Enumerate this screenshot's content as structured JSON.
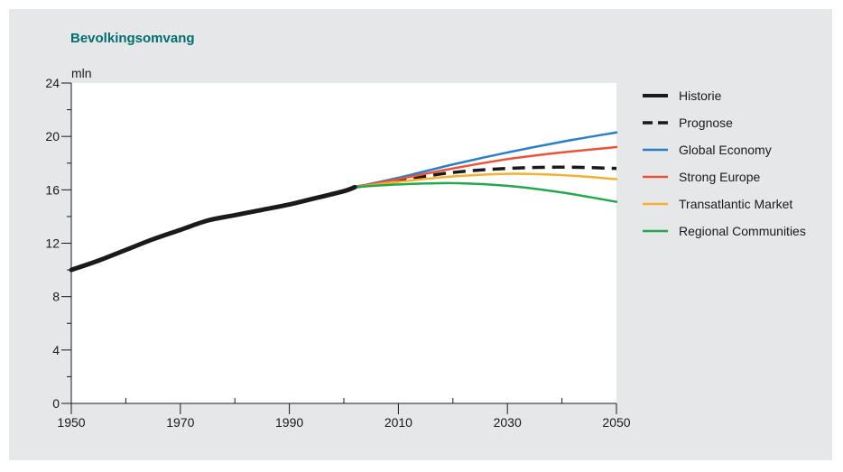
{
  "chart_data": {
    "type": "line",
    "title": "Bevolkingsomvang",
    "ylabel": "mln",
    "xlim": [
      1950,
      2050
    ],
    "ylim": [
      0,
      24
    ],
    "xticks": [
      1950,
      1970,
      1990,
      2010,
      2030,
      2050
    ],
    "xticks_minor": [
      1960,
      1980,
      2000,
      2020,
      2040
    ],
    "yticks": [
      0,
      4,
      8,
      12,
      16,
      20,
      24
    ],
    "yticks_minor": [
      2,
      6,
      10,
      14,
      18,
      22
    ],
    "grid": false,
    "legend_position": "right",
    "series": [
      {
        "name": "Historie",
        "color": "#1a1a1a",
        "style": "solid-thick",
        "x": [
          1950,
          1955,
          1960,
          1965,
          1970,
          1975,
          1980,
          1985,
          1990,
          1995,
          2000,
          2002
        ],
        "y": [
          10.0,
          10.7,
          11.5,
          12.3,
          13.0,
          13.7,
          14.1,
          14.5,
          14.9,
          15.4,
          15.9,
          16.2
        ]
      },
      {
        "name": "Prognose",
        "color": "#1a1a1a",
        "style": "dashed",
        "x": [
          2002,
          2010,
          2020,
          2030,
          2040,
          2050
        ],
        "y": [
          16.2,
          16.7,
          17.3,
          17.6,
          17.7,
          17.6
        ]
      },
      {
        "name": "Global Economy",
        "color": "#2a7fc4",
        "style": "solid",
        "x": [
          2002,
          2010,
          2020,
          2030,
          2040,
          2050
        ],
        "y": [
          16.2,
          16.9,
          17.9,
          18.8,
          19.6,
          20.3
        ]
      },
      {
        "name": "Strong Europe",
        "color": "#e8533a",
        "style": "solid",
        "x": [
          2002,
          2010,
          2020,
          2030,
          2040,
          2050
        ],
        "y": [
          16.2,
          16.8,
          17.6,
          18.3,
          18.8,
          19.2
        ]
      },
      {
        "name": "Transatlantic Market",
        "color": "#f4b030",
        "style": "solid",
        "x": [
          2002,
          2010,
          2020,
          2030,
          2040,
          2050
        ],
        "y": [
          16.2,
          16.6,
          17.0,
          17.2,
          17.1,
          16.8
        ]
      },
      {
        "name": "Regional Communities",
        "color": "#25a64f",
        "style": "solid",
        "x": [
          2002,
          2010,
          2020,
          2030,
          2040,
          2050
        ],
        "y": [
          16.2,
          16.4,
          16.5,
          16.3,
          15.8,
          15.1
        ]
      }
    ]
  }
}
